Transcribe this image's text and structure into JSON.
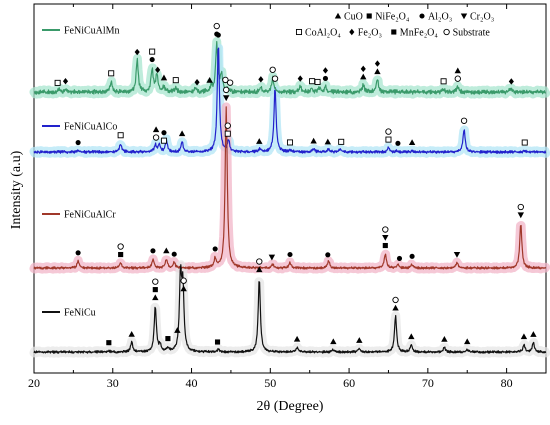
{
  "chart_data": {
    "type": "line",
    "xlabel": "2θ (Degree)",
    "ylabel": "Intensity (a.u)",
    "xlim": [
      20,
      85
    ],
    "xticks": [
      20,
      30,
      40,
      50,
      60,
      70,
      80
    ],
    "ytick_labels": false,
    "grid": false,
    "legend": {
      "placement": "top-right",
      "entries": [
        {
          "marker": "triangle-up",
          "label": "CuO"
        },
        {
          "marker": "square-filled",
          "label": "NiFe₂O₄"
        },
        {
          "marker": "circle-filled",
          "label": "Al₂O₃"
        },
        {
          "marker": "triangle-down",
          "label": "Cr₂O₃"
        },
        {
          "marker": "square-open",
          "label": "CoAl₂O₄"
        },
        {
          "marker": "diamond-filled",
          "label": "Fe₂O₃"
        },
        {
          "marker": "square-filled",
          "label": "MnFe₂O₄"
        },
        {
          "marker": "circle-open",
          "label": "Substrate"
        }
      ]
    },
    "series": [
      {
        "name": "FeNiCuAlMn",
        "color": "#3a9a6a",
        "band": "#a8e6cf",
        "baseline": 0.22,
        "peaks": [
          [
            23.2,
            0.03
          ],
          [
            24.0,
            0.03
          ],
          [
            29.8,
            0.12
          ],
          [
            33.1,
            0.36
          ],
          [
            35.0,
            0.26
          ],
          [
            35.6,
            0.2
          ],
          [
            36.5,
            0.06
          ],
          [
            38.0,
            0.04
          ],
          [
            40.5,
            0.04
          ],
          [
            42.5,
            0.06
          ],
          [
            43.2,
            0.55
          ],
          [
            43.8,
            0.2
          ],
          [
            44.5,
            0.04
          ],
          [
            48.8,
            0.05
          ],
          [
            50.3,
            0.16
          ],
          [
            53.8,
            0.06
          ],
          [
            55.2,
            0.04
          ],
          [
            56.2,
            0.05
          ],
          [
            57.0,
            0.06
          ],
          [
            61.8,
            0.08
          ],
          [
            63.6,
            0.14
          ],
          [
            72.0,
            0.03
          ],
          [
            73.8,
            0.06
          ],
          [
            80.5,
            0.04
          ]
        ],
        "label": "FeNiCuAlMn"
      },
      {
        "name": "FeNiCuAlCo",
        "color": "#2222cc",
        "band": "#b3e5f5",
        "baseline": 0.16,
        "peaks": [
          [
            25.6,
            0.01
          ],
          [
            31.0,
            0.06
          ],
          [
            35.4,
            0.05
          ],
          [
            35.9,
            0.05
          ],
          [
            36.8,
            0.08
          ],
          [
            38.8,
            0.07
          ],
          [
            43.4,
            0.75
          ],
          [
            44.7,
            0.08
          ],
          [
            48.7,
            0.02
          ],
          [
            50.6,
            0.45
          ],
          [
            52.6,
            0.01
          ],
          [
            55.5,
            0.02
          ],
          [
            57.4,
            0.02
          ],
          [
            58.9,
            0.02
          ],
          [
            65.0,
            0.03
          ],
          [
            66.0,
            0.01
          ],
          [
            68.0,
            0.01
          ],
          [
            74.6,
            0.16
          ],
          [
            82.3,
            0.01
          ]
        ],
        "label": "FeNiCuAlCo"
      },
      {
        "name": "FeNiCuAlCr",
        "color": "#a0382a",
        "band": "#f2b6c8",
        "baseline": 0.14,
        "peaks": [
          [
            25.6,
            0.04
          ],
          [
            31.0,
            0.03
          ],
          [
            35.1,
            0.05
          ],
          [
            36.8,
            0.05
          ],
          [
            37.8,
            0.03
          ],
          [
            43.0,
            0.05
          ],
          [
            44.4,
            0.9
          ],
          [
            50.3,
            0.02
          ],
          [
            52.5,
            0.03
          ],
          [
            57.4,
            0.04
          ],
          [
            64.6,
            0.08
          ],
          [
            66.2,
            0.02
          ],
          [
            68.0,
            0.02
          ],
          [
            73.7,
            0.03
          ],
          [
            81.8,
            0.25
          ]
        ],
        "label": "FeNiCuAlCr"
      },
      {
        "name": "FeNiCu",
        "color": "#111111",
        "band": "#e6e6e6",
        "baseline": 0.12,
        "peaks": [
          [
            29.5,
            0.01
          ],
          [
            32.4,
            0.08
          ],
          [
            35.4,
            0.38
          ],
          [
            36.0,
            0.05
          ],
          [
            37.0,
            0.03
          ],
          [
            38.6,
            0.62
          ],
          [
            38.9,
            0.52
          ],
          [
            43.4,
            0.02
          ],
          [
            48.6,
            0.62
          ],
          [
            53.4,
            0.04
          ],
          [
            58.0,
            0.02
          ],
          [
            61.3,
            0.03
          ],
          [
            65.9,
            0.3
          ],
          [
            67.9,
            0.06
          ],
          [
            72.1,
            0.04
          ],
          [
            75.0,
            0.02
          ],
          [
            82.2,
            0.06
          ],
          [
            83.4,
            0.08
          ]
        ],
        "label": "FeNiCu"
      }
    ],
    "annotations": [
      {
        "series": 0,
        "x": 23.0,
        "marker": "square-open"
      },
      {
        "series": 0,
        "x": 24.0,
        "marker": "diamond-filled"
      },
      {
        "series": 0,
        "x": 29.8,
        "marker": "square-open"
      },
      {
        "series": 0,
        "x": 33.1,
        "marker": "diamond-filled"
      },
      {
        "series": 0,
        "x": 35.0,
        "marker": "circle-filled"
      },
      {
        "series": 0,
        "x": 35.0,
        "marker": "square-open"
      },
      {
        "series": 0,
        "x": 35.7,
        "marker": "diamond-filled"
      },
      {
        "series": 0,
        "x": 36.5,
        "marker": "triangle-up"
      },
      {
        "series": 0,
        "x": 38.0,
        "marker": "square-open"
      },
      {
        "series": 0,
        "x": 40.7,
        "marker": "diamond-filled"
      },
      {
        "series": 0,
        "x": 42.3,
        "marker": "triangle-up"
      },
      {
        "series": 0,
        "x": 43.2,
        "marker": "circle-filled"
      },
      {
        "series": 0,
        "x": 43.2,
        "marker": "circle-open"
      },
      {
        "series": 0,
        "x": 44.3,
        "marker": "circle-open"
      },
      {
        "series": 0,
        "x": 44.9,
        "marker": "circle-open"
      },
      {
        "series": 0,
        "x": 48.8,
        "marker": "diamond-filled"
      },
      {
        "series": 0,
        "x": 50.3,
        "marker": "circle-open"
      },
      {
        "series": 0,
        "x": 53.8,
        "marker": "diamond-filled"
      },
      {
        "series": 0,
        "x": 55.3,
        "marker": "square-open"
      },
      {
        "series": 0,
        "x": 56.0,
        "marker": "square-open"
      },
      {
        "series": 0,
        "x": 57.0,
        "marker": "circle-filled"
      },
      {
        "series": 0,
        "x": 57.0,
        "marker": "diamond-filled"
      },
      {
        "series": 0,
        "x": 61.8,
        "marker": "triangle-up"
      },
      {
        "series": 0,
        "x": 61.8,
        "marker": "diamond-filled"
      },
      {
        "series": 0,
        "x": 63.6,
        "marker": "triangle-up"
      },
      {
        "series": 0,
        "x": 63.6,
        "marker": "diamond-filled"
      },
      {
        "series": 0,
        "x": 72.0,
        "marker": "square-open"
      },
      {
        "series": 0,
        "x": 73.8,
        "marker": "circle-open"
      },
      {
        "series": 0,
        "x": 73.8,
        "marker": "triangle-up"
      },
      {
        "series": 0,
        "x": 80.6,
        "marker": "diamond-filled"
      },
      {
        "series": 1,
        "x": 25.6,
        "marker": "circle-filled"
      },
      {
        "series": 1,
        "x": 31.0,
        "marker": "square-open"
      },
      {
        "series": 1,
        "x": 35.5,
        "marker": "circle-open"
      },
      {
        "series": 1,
        "x": 35.5,
        "marker": "triangle-up"
      },
      {
        "series": 1,
        "x": 36.5,
        "marker": "square-open"
      },
      {
        "series": 1,
        "x": 36.5,
        "marker": "circle-filled"
      },
      {
        "series": 1,
        "x": 38.8,
        "marker": "triangle-up"
      },
      {
        "series": 1,
        "x": 43.4,
        "marker": "circle-filled"
      },
      {
        "series": 1,
        "x": 44.6,
        "marker": "square-open"
      },
      {
        "series": 1,
        "x": 44.6,
        "marker": "circle-open"
      },
      {
        "series": 1,
        "x": 48.6,
        "marker": "triangle-up"
      },
      {
        "series": 1,
        "x": 50.6,
        "marker": "circle-open"
      },
      {
        "series": 1,
        "x": 52.5,
        "marker": "square-open"
      },
      {
        "series": 1,
        "x": 55.5,
        "marker": "triangle-up"
      },
      {
        "series": 1,
        "x": 57.3,
        "marker": "triangle-up"
      },
      {
        "series": 1,
        "x": 59.0,
        "marker": "square-open"
      },
      {
        "series": 1,
        "x": 65.0,
        "marker": "square-open"
      },
      {
        "series": 1,
        "x": 65.0,
        "marker": "circle-open"
      },
      {
        "series": 1,
        "x": 66.2,
        "marker": "circle-filled"
      },
      {
        "series": 1,
        "x": 68.0,
        "marker": "triangle-up"
      },
      {
        "series": 1,
        "x": 74.6,
        "marker": "circle-open"
      },
      {
        "series": 1,
        "x": 82.3,
        "marker": "square-open"
      },
      {
        "series": 2,
        "x": 25.6,
        "marker": "circle-filled"
      },
      {
        "series": 2,
        "x": 31.0,
        "marker": "square-filled"
      },
      {
        "series": 2,
        "x": 31.0,
        "marker": "circle-open"
      },
      {
        "series": 2,
        "x": 35.1,
        "marker": "circle-filled"
      },
      {
        "series": 2,
        "x": 36.8,
        "marker": "triangle-up"
      },
      {
        "series": 2,
        "x": 37.8,
        "marker": "circle-filled"
      },
      {
        "series": 2,
        "x": 43.0,
        "marker": "circle-filled"
      },
      {
        "series": 2,
        "x": 44.4,
        "marker": "triangle-down"
      },
      {
        "series": 2,
        "x": 44.4,
        "marker": "circle-open"
      },
      {
        "series": 2,
        "x": 50.2,
        "marker": "triangle-down"
      },
      {
        "series": 2,
        "x": 52.5,
        "marker": "circle-filled"
      },
      {
        "series": 2,
        "x": 57.3,
        "marker": "circle-filled"
      },
      {
        "series": 2,
        "x": 64.6,
        "marker": "square-filled"
      },
      {
        "series": 2,
        "x": 64.6,
        "marker": "triangle-down"
      },
      {
        "series": 2,
        "x": 64.6,
        "marker": "circle-open"
      },
      {
        "series": 2,
        "x": 66.4,
        "marker": "circle-filled"
      },
      {
        "series": 2,
        "x": 68.0,
        "marker": "circle-filled"
      },
      {
        "series": 2,
        "x": 73.7,
        "marker": "triangle-down"
      },
      {
        "series": 2,
        "x": 81.8,
        "marker": "triangle-down"
      },
      {
        "series": 2,
        "x": 81.8,
        "marker": "circle-open"
      },
      {
        "series": 3,
        "x": 29.5,
        "marker": "square-filled"
      },
      {
        "series": 3,
        "x": 32.4,
        "marker": "triangle-up"
      },
      {
        "series": 3,
        "x": 35.4,
        "marker": "triangle-up"
      },
      {
        "series": 3,
        "x": 35.4,
        "marker": "square-filled"
      },
      {
        "series": 3,
        "x": 35.4,
        "marker": "circle-open"
      },
      {
        "series": 3,
        "x": 37.0,
        "marker": "square-filled"
      },
      {
        "series": 3,
        "x": 38.2,
        "marker": "triangle-up"
      },
      {
        "series": 3,
        "x": 39.0,
        "marker": "triangle-up"
      },
      {
        "series": 3,
        "x": 39.0,
        "marker": "circle-open"
      },
      {
        "series": 3,
        "x": 43.3,
        "marker": "square-filled"
      },
      {
        "series": 3,
        "x": 48.6,
        "marker": "triangle-up"
      },
      {
        "series": 3,
        "x": 48.6,
        "marker": "circle-open"
      },
      {
        "series": 3,
        "x": 53.4,
        "marker": "triangle-up"
      },
      {
        "series": 3,
        "x": 58.0,
        "marker": "triangle-up"
      },
      {
        "series": 3,
        "x": 61.3,
        "marker": "triangle-up"
      },
      {
        "series": 3,
        "x": 65.9,
        "marker": "triangle-up"
      },
      {
        "series": 3,
        "x": 65.9,
        "marker": "circle-open"
      },
      {
        "series": 3,
        "x": 67.9,
        "marker": "triangle-up"
      },
      {
        "series": 3,
        "x": 72.1,
        "marker": "triangle-up"
      },
      {
        "series": 3,
        "x": 75.0,
        "marker": "triangle-up"
      },
      {
        "series": 3,
        "x": 82.2,
        "marker": "triangle-up"
      },
      {
        "series": 3,
        "x": 83.4,
        "marker": "triangle-up"
      }
    ]
  }
}
